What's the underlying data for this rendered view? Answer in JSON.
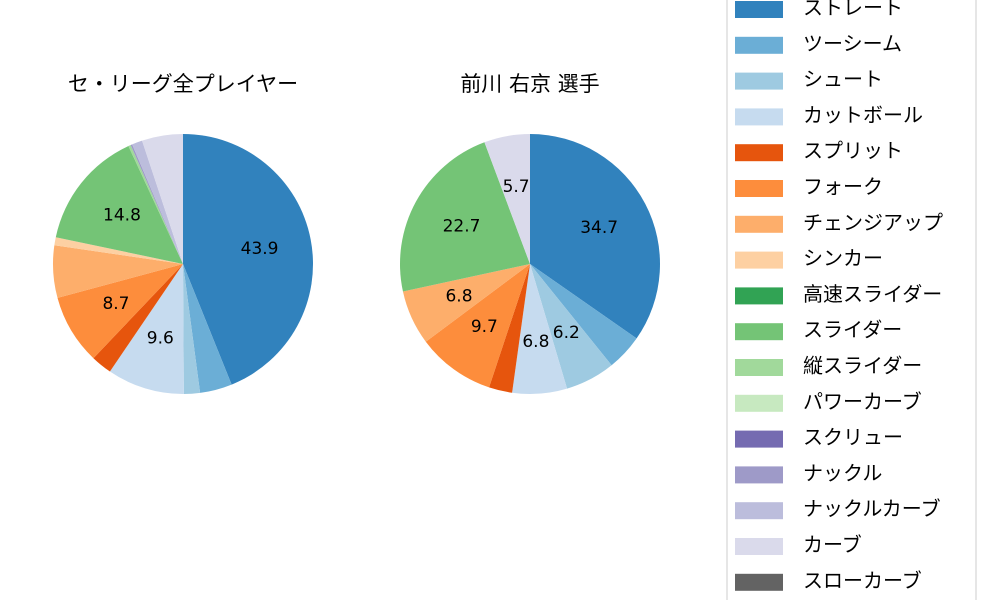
{
  "chart_data": [
    {
      "type": "pie",
      "title": "セ・リーグ全プレイヤー",
      "values": [
        43.9,
        4.0,
        2.0,
        9.6,
        2.6,
        8.7,
        6.5,
        1.0,
        0,
        14.8,
        0.3,
        0,
        0,
        0.2,
        1.3,
        5.1,
        0
      ],
      "value_labels": [
        "43.9",
        null,
        null,
        "9.6",
        null,
        "8.7",
        null,
        null,
        null,
        "14.8",
        null,
        null,
        null,
        null,
        null,
        null,
        null
      ]
    },
    {
      "type": "pie",
      "title": "前川 右京  選手",
      "values": [
        34.7,
        4.5,
        6.2,
        6.8,
        2.9,
        9.7,
        6.8,
        0,
        0,
        22.7,
        0,
        0,
        0,
        0,
        0,
        5.7,
        0
      ],
      "value_labels": [
        "34.7",
        null,
        "6.2",
        "6.8",
        null,
        "9.7",
        "6.8",
        null,
        null,
        "22.7",
        null,
        null,
        null,
        null,
        null,
        "5.7",
        null
      ]
    }
  ],
  "legend": {
    "categories": [
      "ストレート",
      "ツーシーム",
      "シュート",
      "カットボール",
      "スプリット",
      "フォーク",
      "チェンジアップ",
      "シンカー",
      "高速スライダー",
      "スライダー",
      "縦スライダー",
      "パワーカーブ",
      "スクリュー",
      "ナックル",
      "ナックルカーブ",
      "カーブ",
      "スローカーブ"
    ],
    "colors": [
      "#3182bd",
      "#6baed6",
      "#9ecae1",
      "#c6dbef",
      "#e6550d",
      "#fd8d3c",
      "#fdae6b",
      "#fdd0a2",
      "#31a354",
      "#74c476",
      "#a1d99b",
      "#c7e9c0",
      "#756bb1",
      "#9e9ac8",
      "#bcbddc",
      "#dadaeb",
      "#636363"
    ]
  }
}
